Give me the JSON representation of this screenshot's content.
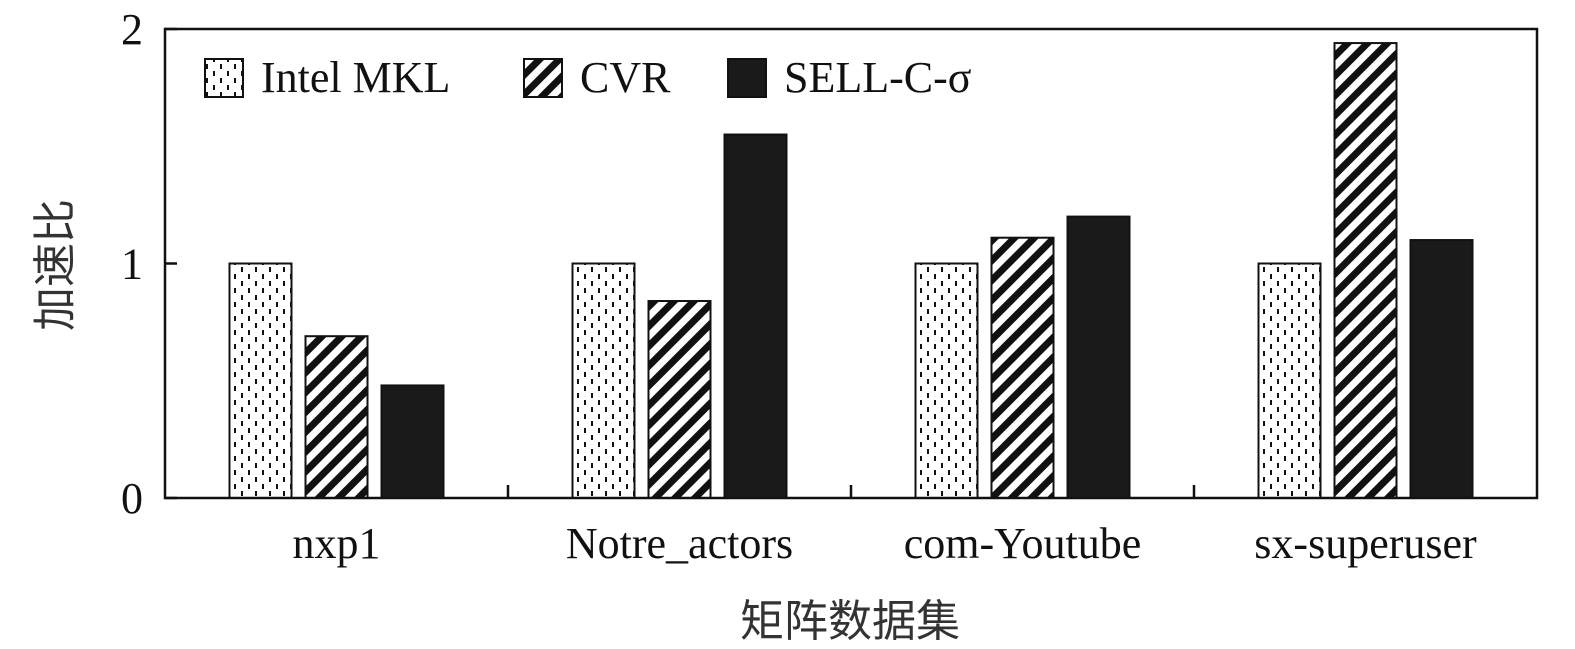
{
  "chart_data": {
    "type": "bar",
    "xlabel": "矩阵数据集",
    "ylabel": "加速比",
    "ylim": [
      0,
      2
    ],
    "yticks": [
      "0",
      "1",
      "2"
    ],
    "categories": [
      "nxp1",
      "Notre_actors",
      "com-Youtube",
      "sx-superuser"
    ],
    "series": [
      {
        "name": "Intel MKL",
        "pattern": "dashed-dots",
        "values": [
          1.0,
          1.0,
          1.0,
          1.0
        ]
      },
      {
        "name": "CVR",
        "pattern": "diagonal-stripes",
        "values": [
          0.69,
          0.84,
          1.11,
          1.94
        ]
      },
      {
        "name": "SELL-C-σ",
        "pattern": "solid-black",
        "values": [
          0.48,
          1.55,
          1.2,
          1.1
        ]
      }
    ],
    "legend_position": "top-left",
    "grid": false
  }
}
